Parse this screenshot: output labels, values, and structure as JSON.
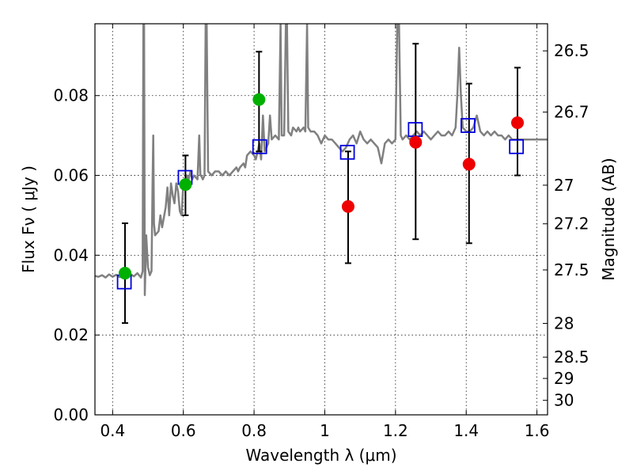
{
  "chart_data": {
    "type": "scatter",
    "xlabel": "Wavelength  λ (μm)",
    "ylabel": "Flux  Fν  ( μJy )",
    "y2label": "Magnitude (AB)",
    "xlim": [
      0.35,
      1.63
    ],
    "ylim": [
      0.0,
      0.098
    ],
    "grid": true,
    "x_ticks": [
      "0.4",
      "0.6",
      "0.8",
      "1",
      "1.2",
      "1.4",
      "1.6"
    ],
    "x_tick_values": [
      0.4,
      0.6,
      0.8,
      1.0,
      1.2,
      1.4,
      1.6
    ],
    "y_ticks": [
      "0.00",
      "0.02",
      "0.04",
      "0.06",
      "0.08"
    ],
    "y_tick_values": [
      0.0,
      0.02,
      0.04,
      0.06,
      0.08
    ],
    "y2_ticks": [
      "26.5",
      "26.7",
      "27",
      "27.2",
      "27.5",
      "28",
      "28.5",
      "29",
      "30"
    ],
    "y2_tick_values": [
      26.5,
      26.7,
      27.0,
      27.2,
      27.5,
      28.0,
      28.5,
      29.0,
      30.0
    ],
    "colors": {
      "spectrum": "#808080",
      "green_points": "#00b000",
      "red_points": "#ee0000",
      "model_boxes": "#0000dd",
      "errorbars": "#000000"
    },
    "series": [
      {
        "kind": "line",
        "points": [
          [
            0.35,
            0.0348
          ],
          [
            0.36,
            0.0346
          ],
          [
            0.37,
            0.035
          ],
          [
            0.38,
            0.0344
          ],
          [
            0.39,
            0.0352
          ],
          [
            0.4,
            0.0346
          ],
          [
            0.41,
            0.0351
          ],
          [
            0.42,
            0.0345
          ],
          [
            0.43,
            0.0352
          ],
          [
            0.44,
            0.0348
          ],
          [
            0.45,
            0.0353
          ],
          [
            0.46,
            0.0347
          ],
          [
            0.47,
            0.0355
          ],
          [
            0.48,
            0.0344
          ],
          [
            0.485,
            0.036
          ],
          [
            0.487,
            0.098
          ],
          [
            0.489,
            0.098
          ],
          [
            0.491,
            0.03
          ],
          [
            0.495,
            0.045
          ],
          [
            0.5,
            0.037
          ],
          [
            0.505,
            0.035
          ],
          [
            0.51,
            0.036
          ],
          [
            0.513,
            0.058
          ],
          [
            0.515,
            0.07
          ],
          [
            0.517,
            0.048
          ],
          [
            0.52,
            0.045
          ],
          [
            0.53,
            0.046
          ],
          [
            0.535,
            0.05
          ],
          [
            0.54,
            0.047
          ],
          [
            0.55,
            0.052
          ],
          [
            0.555,
            0.057
          ],
          [
            0.56,
            0.05
          ],
          [
            0.565,
            0.058
          ],
          [
            0.57,
            0.055
          ],
          [
            0.575,
            0.053
          ],
          [
            0.58,
            0.058
          ],
          [
            0.585,
            0.056
          ],
          [
            0.59,
            0.051
          ],
          [
            0.595,
            0.05
          ],
          [
            0.6,
            0.058
          ],
          [
            0.61,
            0.06
          ],
          [
            0.615,
            0.059
          ],
          [
            0.62,
            0.061
          ],
          [
            0.625,
            0.059
          ],
          [
            0.63,
            0.06
          ],
          [
            0.64,
            0.059
          ],
          [
            0.645,
            0.07
          ],
          [
            0.648,
            0.06
          ],
          [
            0.65,
            0.06
          ],
          [
            0.655,
            0.059
          ],
          [
            0.66,
            0.06
          ],
          [
            0.663,
            0.098
          ],
          [
            0.666,
            0.098
          ],
          [
            0.67,
            0.061
          ],
          [
            0.68,
            0.06
          ],
          [
            0.69,
            0.061
          ],
          [
            0.7,
            0.061
          ],
          [
            0.71,
            0.06
          ],
          [
            0.72,
            0.061
          ],
          [
            0.73,
            0.06
          ],
          [
            0.74,
            0.061
          ],
          [
            0.75,
            0.062
          ],
          [
            0.755,
            0.061
          ],
          [
            0.76,
            0.062
          ],
          [
            0.77,
            0.063
          ],
          [
            0.775,
            0.062
          ],
          [
            0.78,
            0.065
          ],
          [
            0.79,
            0.066
          ],
          [
            0.8,
            0.065
          ],
          [
            0.805,
            0.064
          ],
          [
            0.81,
            0.066
          ],
          [
            0.815,
            0.068
          ],
          [
            0.82,
            0.064
          ],
          [
            0.825,
            0.075
          ],
          [
            0.83,
            0.066
          ],
          [
            0.84,
            0.068
          ],
          [
            0.845,
            0.075
          ],
          [
            0.85,
            0.069
          ],
          [
            0.86,
            0.07
          ],
          [
            0.87,
            0.069
          ],
          [
            0.875,
            0.098
          ],
          [
            0.878,
            0.07
          ],
          [
            0.885,
            0.07
          ],
          [
            0.89,
            0.098
          ],
          [
            0.893,
            0.098
          ],
          [
            0.897,
            0.071
          ],
          [
            0.905,
            0.07
          ],
          [
            0.91,
            0.072
          ],
          [
            0.92,
            0.071
          ],
          [
            0.925,
            0.072
          ],
          [
            0.93,
            0.071
          ],
          [
            0.94,
            0.072
          ],
          [
            0.945,
            0.071
          ],
          [
            0.95,
            0.098
          ],
          [
            0.953,
            0.072
          ],
          [
            0.96,
            0.071
          ],
          [
            0.97,
            0.071
          ],
          [
            0.98,
            0.07
          ],
          [
            0.99,
            0.068
          ],
          [
            1.0,
            0.07
          ],
          [
            1.01,
            0.069
          ],
          [
            1.02,
            0.069
          ],
          [
            1.03,
            0.068
          ],
          [
            1.04,
            0.067
          ],
          [
            1.05,
            0.066
          ],
          [
            1.06,
            0.067
          ],
          [
            1.07,
            0.069
          ],
          [
            1.08,
            0.07
          ],
          [
            1.09,
            0.068
          ],
          [
            1.1,
            0.071
          ],
          [
            1.11,
            0.069
          ],
          [
            1.12,
            0.068
          ],
          [
            1.13,
            0.069
          ],
          [
            1.14,
            0.068
          ],
          [
            1.15,
            0.067
          ],
          [
            1.16,
            0.063
          ],
          [
            1.17,
            0.068
          ],
          [
            1.18,
            0.069
          ],
          [
            1.19,
            0.068
          ],
          [
            1.2,
            0.069
          ],
          [
            1.205,
            0.098
          ],
          [
            1.21,
            0.098
          ],
          [
            1.215,
            0.07
          ],
          [
            1.22,
            0.069
          ],
          [
            1.23,
            0.07
          ],
          [
            1.24,
            0.069
          ],
          [
            1.25,
            0.07
          ],
          [
            1.26,
            0.071
          ],
          [
            1.27,
            0.07
          ],
          [
            1.28,
            0.071
          ],
          [
            1.29,
            0.07
          ],
          [
            1.3,
            0.069
          ],
          [
            1.31,
            0.07
          ],
          [
            1.32,
            0.071
          ],
          [
            1.33,
            0.07
          ],
          [
            1.34,
            0.07
          ],
          [
            1.35,
            0.071
          ],
          [
            1.36,
            0.07
          ],
          [
            1.37,
            0.072
          ],
          [
            1.375,
            0.08
          ],
          [
            1.38,
            0.092
          ],
          [
            1.385,
            0.08
          ],
          [
            1.39,
            0.072
          ],
          [
            1.4,
            0.071
          ],
          [
            1.41,
            0.071
          ],
          [
            1.42,
            0.072
          ],
          [
            1.43,
            0.075
          ],
          [
            1.44,
            0.071
          ],
          [
            1.45,
            0.07
          ],
          [
            1.46,
            0.071
          ],
          [
            1.47,
            0.07
          ],
          [
            1.48,
            0.071
          ],
          [
            1.49,
            0.07
          ],
          [
            1.5,
            0.07
          ],
          [
            1.51,
            0.069
          ],
          [
            1.52,
            0.07
          ],
          [
            1.53,
            0.069
          ],
          [
            1.54,
            0.069
          ],
          [
            1.55,
            0.069
          ],
          [
            1.56,
            0.069
          ],
          [
            1.57,
            0.069
          ],
          [
            1.58,
            0.069
          ],
          [
            1.59,
            0.069
          ],
          [
            1.6,
            0.069
          ],
          [
            1.61,
            0.069
          ],
          [
            1.62,
            0.069
          ],
          [
            1.63,
            0.069
          ]
        ]
      },
      {
        "kind": "errorbar-points",
        "points": [
          {
            "x": 0.435,
            "y": 0.0355,
            "yerr": [
              0.023,
              0.048
            ]
          },
          {
            "x": 0.606,
            "y": 0.0577,
            "yerr": [
              0.05,
              0.065
            ]
          },
          {
            "x": 0.814,
            "y": 0.079,
            "yerr": [
              0.066,
              0.091
            ]
          }
        ]
      },
      {
        "kind": "errorbar-points",
        "points": [
          {
            "x": 1.066,
            "y": 0.0522,
            "yerr": [
              0.038,
              0.066
            ]
          },
          {
            "x": 1.257,
            "y": 0.0683,
            "yerr": [
              0.044,
              0.093
            ]
          },
          {
            "x": 1.408,
            "y": 0.0628,
            "yerr": [
              0.043,
              0.083
            ]
          },
          {
            "x": 1.545,
            "y": 0.0732,
            "yerr": [
              0.06,
              0.087
            ]
          }
        ]
      },
      {
        "kind": "square-markers",
        "points": [
          {
            "x": 0.433,
            "y": 0.0333
          },
          {
            "x": 0.605,
            "y": 0.0595
          },
          {
            "x": 0.816,
            "y": 0.0672
          },
          {
            "x": 1.064,
            "y": 0.0658
          },
          {
            "x": 1.256,
            "y": 0.0715
          },
          {
            "x": 1.405,
            "y": 0.0725
          },
          {
            "x": 1.542,
            "y": 0.0672
          }
        ]
      }
    ]
  }
}
